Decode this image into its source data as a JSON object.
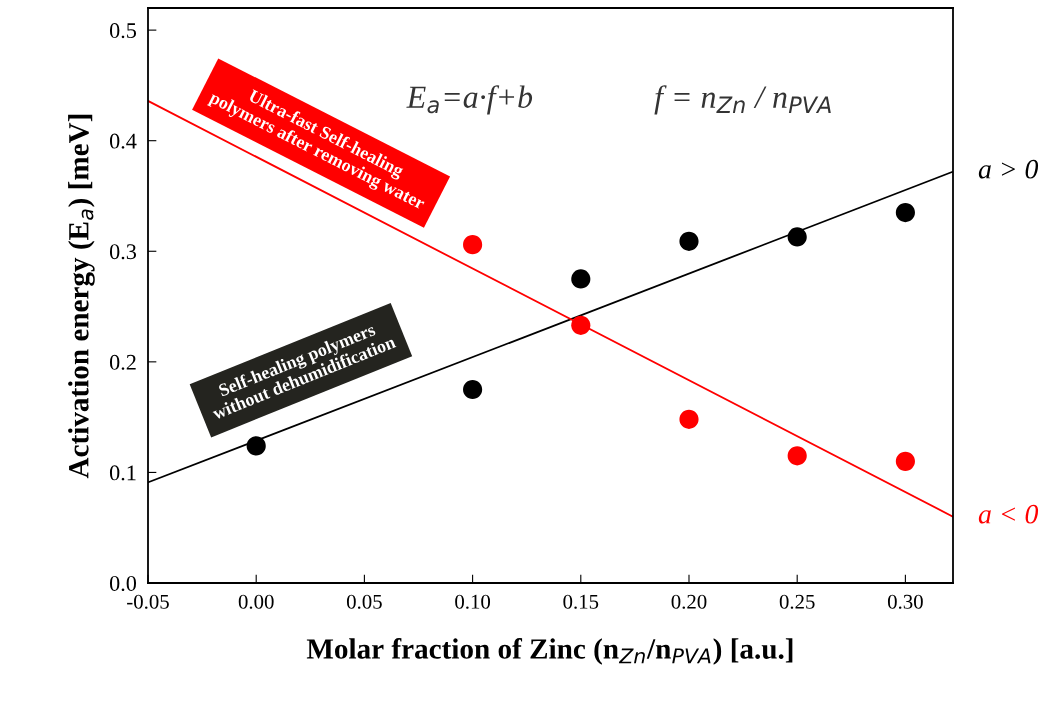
{
  "chart_data": {
    "type": "scatter",
    "xlabel": "Molar fraction of Zinc (n$_{Zn}$/n$_{PVA}$) [a.u.]",
    "ylabel": "Activation energy (E$_{a}$) [meV]",
    "xlim": [
      -0.05,
      0.322
    ],
    "xticks": [
      {
        "value": -0.05,
        "label": "-0.05"
      },
      {
        "value": 0,
        "label": "0.00"
      },
      {
        "value": 0.05,
        "label": "0.05"
      },
      {
        "value": 0.1,
        "label": "0.10"
      },
      {
        "value": 0.15,
        "label": "0.15"
      },
      {
        "value": 0.2,
        "label": "0.20"
      },
      {
        "value": 0.25,
        "label": "0.25"
      },
      {
        "value": 0.3,
        "label": "0.30"
      }
    ],
    "ylim": [
      0,
      0.52
    ],
    "yticks": [
      {
        "value": 0,
        "label": "0.0"
      },
      {
        "value": 0.1,
        "label": "0.1"
      },
      {
        "value": 0.2,
        "label": "0.2"
      },
      {
        "value": 0.3,
        "label": "0.3"
      },
      {
        "value": 0.4,
        "label": "0.4"
      },
      {
        "value": 0.5,
        "label": "0.5"
      }
    ],
    "grid": false,
    "legend": false,
    "marker": "circle",
    "annotations": [
      "E$_{a}$=a·f+b",
      "f = n$_{Zn}$ / n$_{PVA}$",
      "Self-healing polymers without dehumidification",
      "Ultra-fast Self-healing polymers after removing water"
    ],
    "series": [
      {
        "color": "#000000",
        "x": [
          0,
          0.1,
          0.15,
          0.2,
          0.25,
          0.3
        ],
        "values": [
          0.124,
          0.175,
          0.275,
          0.309,
          0.313,
          0.335
        ]
      },
      {
        "color": "#ff0000",
        "x": [
          0.1,
          0.15,
          0.2,
          0.25,
          0.3
        ],
        "values": [
          0.306,
          0.233,
          0.148,
          0.115,
          0.11
        ]
      },
      {
        "name": "a > 0",
        "type": "line",
        "color": "#000000",
        "marker": "none",
        "x": [
          -0.05,
          0.322
        ],
        "values": [
          0.091,
          0.372
        ]
      },
      {
        "name": "a < 0",
        "type": "line",
        "color": "#ff0000",
        "marker": "none",
        "x": [
          -0.05,
          0.322
        ],
        "values": [
          0.436,
          0.06
        ]
      }
    ]
  }
}
